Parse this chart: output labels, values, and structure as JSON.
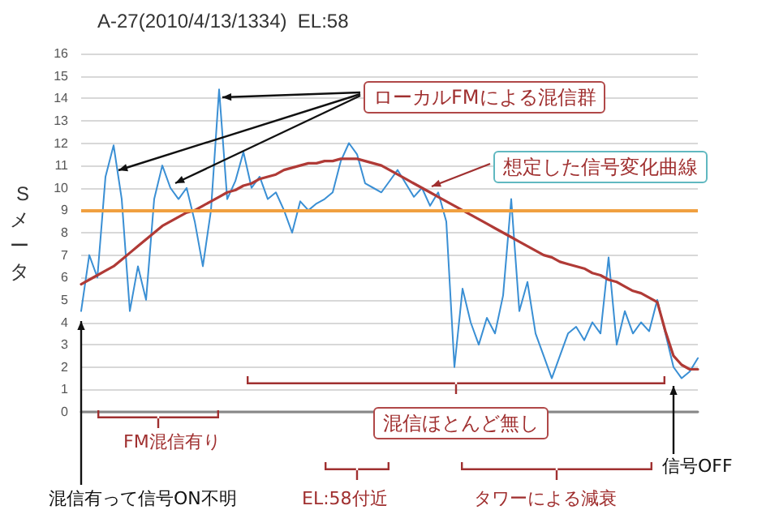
{
  "chart_data": {
    "type": "line",
    "title": "A-27(2010/4/13/1334)  EL:58",
    "ylabel": "Sメータ",
    "categories": [
      null,
      null,
      null,
      null,
      null,
      null,
      null,
      null,
      null,
      null,
      null,
      null,
      null,
      null,
      null,
      null,
      null,
      null,
      null,
      null,
      null,
      null,
      null,
      null,
      null,
      null,
      null,
      null,
      null,
      null,
      null,
      null,
      null,
      null,
      null,
      null,
      null,
      null,
      null,
      null,
      null,
      null,
      null,
      null,
      null,
      null,
      null,
      null,
      null,
      null,
      null,
      null,
      null,
      null,
      null,
      null,
      null,
      null,
      null,
      null,
      null,
      null,
      null,
      null,
      null,
      null,
      null,
      null,
      null,
      null,
      null,
      null,
      null,
      null,
      null,
      null,
      null
    ],
    "series": [
      {
        "color": "#3a8fd4",
        "values": [
          4.5,
          7,
          6,
          10.5,
          11.9,
          9.5,
          4.5,
          6.5,
          5,
          9.5,
          11,
          10,
          9.5,
          10,
          8.5,
          6.5,
          9,
          14.4,
          9.5,
          10.3,
          11.6,
          10,
          10.5,
          9.5,
          9.8,
          9,
          8,
          9.4,
          9,
          9.3,
          9.5,
          9.8,
          11.2,
          12,
          11.5,
          10.2,
          10,
          9.8,
          10.3,
          10.8,
          10.2,
          9.6,
          10,
          9.2,
          9.8,
          8.5,
          2,
          5.5,
          4,
          3,
          4.2,
          3.5,
          5.2,
          9.5,
          4.5,
          5.8,
          3.5,
          2.5,
          1.5,
          2.5,
          3.5,
          3.8,
          3.2,
          4,
          3.5,
          6.9,
          3,
          4.5,
          3.5,
          4,
          3.6,
          5,
          3.5,
          2,
          1.5,
          1.8,
          2.4
        ]
      },
      {
        "color": "#b03a36",
        "values": [
          5.7,
          5.9,
          6.1,
          6.3,
          6.5,
          6.8,
          7.1,
          7.4,
          7.7,
          8.0,
          8.3,
          8.5,
          8.7,
          8.9,
          9.0,
          9.2,
          9.4,
          9.6,
          9.8,
          9.9,
          10.1,
          10.2,
          10.4,
          10.5,
          10.6,
          10.8,
          10.9,
          11.0,
          11.1,
          11.1,
          11.2,
          11.2,
          11.3,
          11.3,
          11.3,
          11.2,
          11.1,
          11.0,
          10.8,
          10.6,
          10.4,
          10.2,
          10.0,
          9.8,
          9.6,
          9.4,
          9.2,
          9.0,
          8.8,
          8.6,
          8.4,
          8.2,
          8.0,
          7.8,
          7.6,
          7.4,
          7.2,
          7.0,
          6.9,
          6.7,
          6.6,
          6.5,
          6.4,
          6.2,
          6.1,
          5.9,
          5.8,
          5.6,
          5.4,
          5.3,
          5.1,
          4.9,
          3.6,
          2.5,
          2.1,
          1.9,
          1.9
        ]
      }
    ],
    "ylim": [
      0,
      16
    ],
    "yticks": [
      0,
      1,
      2,
      3,
      4,
      5,
      6,
      7,
      8,
      9,
      10,
      11,
      12,
      13,
      14,
      15,
      16
    ],
    "grid": "y",
    "tick_labels": "y",
    "line_style": "solid",
    "ref_lines": [
      {
        "axis": "y",
        "value": 9,
        "color": "#f0a040"
      }
    ],
    "annotations": [
      "ローカルFMによる混信群",
      "想定した信号変化曲線",
      "FM混信有り",
      "混信有って信号ON不明",
      "EL:58付近",
      "混信ほとんど無し",
      "タワーによる減衰",
      "信号OFF"
    ]
  }
}
